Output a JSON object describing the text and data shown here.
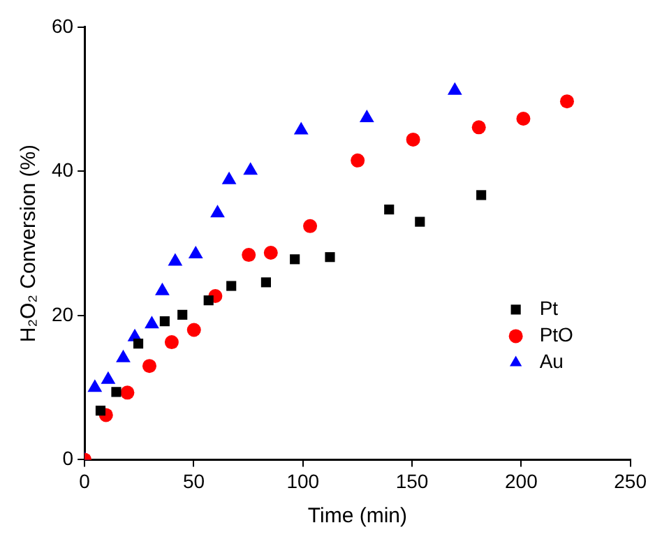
{
  "chart_data": {
    "type": "scatter",
    "xlabel": "Time (min)",
    "ylabel": "H₂O₂ Conversion (%)",
    "xlim": [
      0,
      250
    ],
    "xticks": [
      0,
      50,
      100,
      150,
      200,
      250
    ],
    "ylim": [
      0,
      60
    ],
    "yticks": [
      0,
      20,
      40,
      60
    ],
    "grid": false,
    "legend": "bottom right",
    "series": [
      {
        "name": "Pt",
        "color": "#000000",
        "marker": "square",
        "x": [
          7.3,
          14.5,
          24.6,
          36.7,
          44.8,
          56.8,
          67.2,
          83.1,
          96.3,
          112.4,
          139.5,
          153.6,
          181.7
        ],
        "values": [
          6.8,
          9.4,
          16.1,
          19.2,
          20.1,
          22.1,
          24.1,
          24.6,
          27.8,
          28.1,
          34.7,
          33.0,
          36.7
        ]
      },
      {
        "name": "PtO",
        "color": "#ff0000",
        "marker": "circle",
        "x": [
          0,
          9.8,
          19.6,
          29.7,
          39.9,
          50.1,
          59.9,
          75.2,
          85.3,
          103.3,
          125.1,
          150.5,
          180.6,
          201,
          221
        ],
        "values": [
          0,
          6.2,
          9.3,
          13.0,
          16.3,
          18.0,
          22.7,
          28.4,
          28.7,
          32.4,
          41.5,
          44.4,
          46.1,
          47.3,
          49.7
        ]
      },
      {
        "name": "Au",
        "color": "#0000ff",
        "marker": "triangle",
        "x": [
          0,
          4.7,
          10.8,
          17.7,
          23.0,
          30.8,
          35.6,
          41.5,
          50.9,
          60.9,
          66.2,
          76.0,
          99.2,
          129.3,
          169.6
        ],
        "values": [
          0,
          10.0,
          11.1,
          14.1,
          17.0,
          18.8,
          23.4,
          27.5,
          28.5,
          34.2,
          38.8,
          40.1,
          45.7,
          47.4,
          51.2
        ]
      }
    ]
  }
}
